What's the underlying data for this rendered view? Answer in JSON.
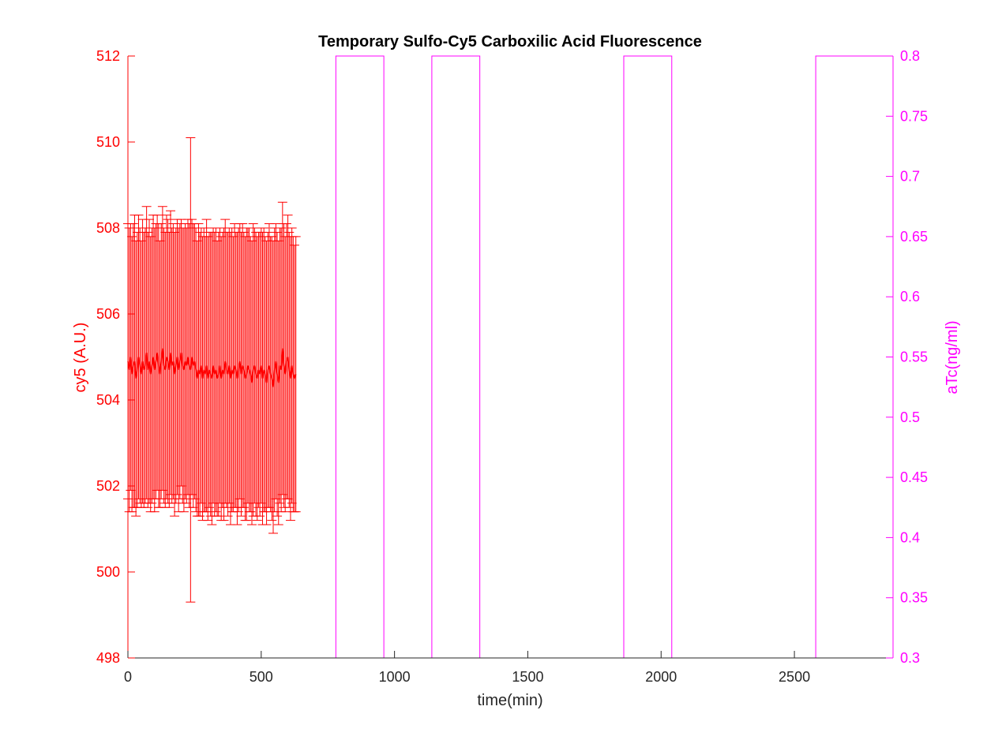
{
  "chart_data": {
    "type": "line",
    "title": "Temporary Sulfo-Cy5 Carboxilic Acid Fluorescence",
    "xlabel": "time(min)",
    "ylabel_left": "cy5 (A.U.)",
    "ylabel_right": "aTc(ng/ml)",
    "xlim": [
      0,
      2870
    ],
    "ylim_left": [
      498,
      512
    ],
    "ylim_right": [
      0.3,
      0.8
    ],
    "x_ticks": [
      "0",
      "500",
      "1000",
      "1500",
      "2000",
      "2500"
    ],
    "y_left_ticks": [
      "498",
      "500",
      "502",
      "504",
      "506",
      "508",
      "510",
      "512"
    ],
    "y_right_ticks": [
      "0.3",
      "0.35",
      "0.4",
      "0.45",
      "0.5",
      "0.55",
      "0.6",
      "0.65",
      "0.7",
      "0.75",
      "0.8"
    ],
    "grid": false,
    "colors": {
      "left": "#ff0000",
      "right": "#ff00ff",
      "text": "#000000",
      "axis": "#262626"
    },
    "series": [
      {
        "name": "cy5",
        "axis": "left",
        "style": "errorbar",
        "x": [
          0,
          5,
          10,
          15,
          20,
          25,
          30,
          35,
          40,
          45,
          50,
          55,
          60,
          65,
          70,
          75,
          80,
          85,
          90,
          95,
          100,
          105,
          110,
          115,
          120,
          125,
          130,
          135,
          140,
          145,
          150,
          155,
          160,
          165,
          170,
          175,
          180,
          185,
          190,
          195,
          200,
          205,
          210,
          215,
          220,
          225,
          230,
          235,
          240,
          245,
          250,
          255,
          260,
          265,
          270,
          275,
          280,
          285,
          290,
          295,
          300,
          305,
          310,
          315,
          320,
          325,
          330,
          335,
          340,
          345,
          350,
          355,
          360,
          365,
          370,
          375,
          380,
          385,
          390,
          395,
          400,
          405,
          410,
          415,
          420,
          425,
          430,
          435,
          440,
          445,
          450,
          455,
          460,
          465,
          470,
          475,
          480,
          485,
          490,
          495,
          500,
          505,
          510,
          515,
          520,
          525,
          530,
          535,
          540,
          545,
          550,
          555,
          560,
          565,
          570,
          575,
          580,
          585,
          590,
          595,
          600,
          605,
          610,
          615,
          620,
          625,
          630
        ],
        "y": [
          504.9,
          504.7,
          505.0,
          504.6,
          504.8,
          504.9,
          504.5,
          504.7,
          505.0,
          504.8,
          504.6,
          504.9,
          504.7,
          504.8,
          505.1,
          504.7,
          504.9,
          504.6,
          504.8,
          505.0,
          504.7,
          504.9,
          505.1,
          504.8,
          504.6,
          504.9,
          505.2,
          504.8,
          504.7,
          505.0,
          504.9,
          504.7,
          505.1,
          504.8,
          504.9,
          504.6,
          504.8,
          505.0,
          504.7,
          504.9,
          505.1,
          504.8,
          504.7,
          504.9,
          504.8,
          505.0,
          504.8,
          504.7,
          505.0,
          504.8,
          504.9,
          504.7,
          504.5,
          504.7,
          504.6,
          504.8,
          504.5,
          504.7,
          504.6,
          504.8,
          504.5,
          504.7,
          504.6,
          504.5,
          504.8,
          504.6,
          504.7,
          504.5,
          504.6,
          504.8,
          504.5,
          504.7,
          504.6,
          504.9,
          504.7,
          504.6,
          504.8,
          504.5,
          504.7,
          504.6,
          504.8,
          504.7,
          504.5,
          504.7,
          504.9,
          504.6,
          504.8,
          504.7,
          504.5,
          504.6,
          504.8,
          504.7,
          504.6,
          504.4,
          504.7,
          504.8,
          504.6,
          504.5,
          504.7,
          504.6,
          504.8,
          504.5,
          504.7,
          504.6,
          504.4,
          504.7,
          504.8,
          504.6,
          504.5,
          504.3,
          504.7,
          504.9,
          504.6,
          504.4,
          504.8,
          504.7,
          505.2,
          504.8,
          504.6,
          504.9,
          505.0,
          504.7,
          504.5,
          504.8,
          504.6,
          504.5,
          504.6
        ],
        "err": [
          3.2,
          3.3,
          3.1,
          3.2,
          3.3,
          3.4,
          3.2,
          3.2,
          3.3,
          3.2,
          3.1,
          3.3,
          3.2,
          3.2,
          3.4,
          3.2,
          3.3,
          3.2,
          3.2,
          3.3,
          3.3,
          3.2,
          3.2,
          3.3,
          3.1,
          3.2,
          3.3,
          3.2,
          3.2,
          3.3,
          3.3,
          3.2,
          3.3,
          3.2,
          3.2,
          3.3,
          3.2,
          3.2,
          3.3,
          3.2,
          3.1,
          3.2,
          3.3,
          3.2,
          3.2,
          3.2,
          3.3,
          5.4,
          3.2,
          3.3,
          3.2,
          3.3,
          3.2,
          3.4,
          3.3,
          3.2,
          3.3,
          3.3,
          3.2,
          3.4,
          3.3,
          3.2,
          3.3,
          3.4,
          3.2,
          3.3,
          3.3,
          3.2,
          3.3,
          3.2,
          3.3,
          3.2,
          3.4,
          3.3,
          3.2,
          3.3,
          3.2,
          3.4,
          3.3,
          3.2,
          3.3,
          3.2,
          3.4,
          3.3,
          3.2,
          3.3,
          3.3,
          3.2,
          3.3,
          3.4,
          3.2,
          3.3,
          3.2,
          3.3,
          3.4,
          3.2,
          3.3,
          3.3,
          3.2,
          3.3,
          3.2,
          3.4,
          3.3,
          3.2,
          3.3,
          3.2,
          3.3,
          3.2,
          3.3,
          3.4,
          3.3,
          3.2,
          3.3,
          3.3,
          3.2,
          3.3,
          3.4,
          3.3,
          3.2,
          3.2,
          3.3,
          3.2,
          3.3,
          3.2,
          3.2,
          3.1,
          3.2
        ]
      },
      {
        "name": "aTc",
        "axis": "right",
        "style": "step",
        "x": [
          0,
          780,
          780,
          960,
          960,
          1140,
          1140,
          1320,
          1320,
          1860,
          1860,
          2040,
          2040,
          2580,
          2580,
          2870
        ],
        "y": [
          0.3,
          0.3,
          0.8,
          0.8,
          0.3,
          0.3,
          0.8,
          0.8,
          0.3,
          0.3,
          0.8,
          0.8,
          0.3,
          0.3,
          0.8,
          0.8
        ]
      }
    ]
  }
}
